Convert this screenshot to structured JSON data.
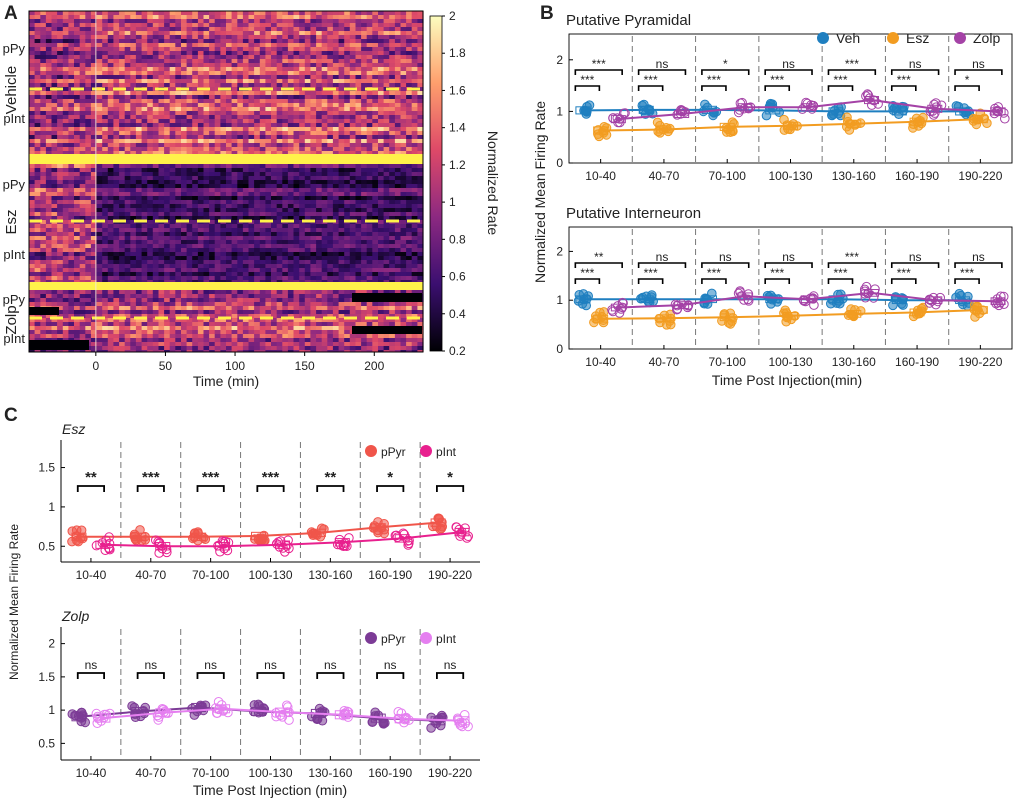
{
  "figure": {
    "panels": [
      {
        "id": "A",
        "letter": "A"
      },
      {
        "id": "B",
        "letter": "B"
      },
      {
        "id": "C",
        "letter": "C"
      }
    ]
  },
  "chart_data": [
    {
      "id": "A",
      "type": "heatmap",
      "xlabel": "Time (min)",
      "xticks": [
        0,
        50,
        100,
        150,
        200
      ],
      "xlim": [
        -48,
        235
      ],
      "colorbar": {
        "label": "Normalized Rate",
        "range": [
          0.2,
          2
        ],
        "ticks": [
          "2",
          "1.8",
          "1.6",
          "1.4",
          "1.2",
          "1",
          "0.8",
          "0.6",
          "0.4",
          "0.2"
        ],
        "stops": [
          "#000004",
          "#3b0f70",
          "#8c2981",
          "#de4968",
          "#fe9f6d",
          "#fcfdbf"
        ]
      },
      "groups": [
        {
          "name": "Vehicle",
          "rows": [
            "pPy",
            "pInt"
          ]
        },
        {
          "name": "Esz",
          "rows": [
            "pPy",
            "pInt"
          ]
        },
        {
          "name": "Zolp",
          "rows": [
            "pPy",
            "pInt"
          ]
        }
      ]
    },
    {
      "id": "B",
      "type": "scatter",
      "categories": [
        "10-40",
        "40-70",
        "70-100",
        "100-130",
        "130-160",
        "160-190",
        "190-220"
      ],
      "xlabel": "Time Post Injection(min)",
      "ylabel": "Normalized Mean Firing Rate",
      "legend": [
        {
          "name": "Veh",
          "color": "#1f7fc0"
        },
        {
          "name": "Esz",
          "color": "#f29c21"
        },
        {
          "name": "Zolp",
          "color": "#a442a6"
        }
      ],
      "subplots": [
        {
          "title": "Putative Pyramidal",
          "ylim": [
            0,
            2.5
          ],
          "yticks": [
            0,
            1,
            2
          ],
          "series": [
            {
              "name": "Veh",
              "values": [
                1.02,
                1.03,
                1.03,
                1.02,
                1.0,
                1.0,
                1.0
              ]
            },
            {
              "name": "Esz",
              "values": [
                0.63,
                0.65,
                0.7,
                0.72,
                0.76,
                0.8,
                0.85
              ]
            },
            {
              "name": "Zolp",
              "values": [
                0.85,
                0.95,
                1.08,
                1.08,
                1.22,
                1.05,
                1.0
              ]
            }
          ],
          "sig": [
            {
              "top": "***",
              "bottom": "***"
            },
            {
              "top": "ns",
              "bottom": "***"
            },
            {
              "top": "*",
              "bottom": "***"
            },
            {
              "top": "ns",
              "bottom": "***"
            },
            {
              "top": "***",
              "bottom": "***"
            },
            {
              "top": "ns",
              "bottom": "***"
            },
            {
              "top": "ns",
              "bottom": "*"
            }
          ]
        },
        {
          "title": "Putative Interneuron",
          "ylim": [
            0,
            2.5
          ],
          "yticks": [
            0,
            1,
            2
          ],
          "series": [
            {
              "name": "Veh",
              "values": [
                1.02,
                1.02,
                1.02,
                1.02,
                1.02,
                1.0,
                1.0
              ]
            },
            {
              "name": "Esz",
              "values": [
                0.62,
                0.63,
                0.65,
                0.68,
                0.72,
                0.75,
                0.8
              ]
            },
            {
              "name": "Zolp",
              "values": [
                0.85,
                0.9,
                1.08,
                1.02,
                1.15,
                1.0,
                0.98
              ]
            }
          ],
          "sig": [
            {
              "top": "**",
              "bottom": "***"
            },
            {
              "top": "ns",
              "bottom": "***"
            },
            {
              "top": "ns",
              "bottom": "***"
            },
            {
              "top": "ns",
              "bottom": "***"
            },
            {
              "top": "***",
              "bottom": "***"
            },
            {
              "top": "ns",
              "bottom": "***"
            },
            {
              "top": "ns",
              "bottom": "***"
            }
          ]
        }
      ]
    },
    {
      "id": "C",
      "type": "scatter",
      "categories": [
        "10-40",
        "40-70",
        "70-100",
        "100-130",
        "130-160",
        "160-190",
        "190-220"
      ],
      "xlabel": "Time Post Injection (min)",
      "ylabel": "Normalized Mean Firing Rate",
      "subplots": [
        {
          "title": "Esz",
          "ylim": [
            0.3,
            1.85
          ],
          "yticks": [
            0.5,
            1,
            1.5
          ],
          "legend": [
            {
              "name": "pPyr",
              "color": "#f0554a"
            },
            {
              "name": "pInt",
              "color": "#e8208e"
            }
          ],
          "series": [
            {
              "name": "pPyr",
              "values": [
                0.62,
                0.62,
                0.62,
                0.63,
                0.67,
                0.74,
                0.8
              ]
            },
            {
              "name": "pInt",
              "values": [
                0.52,
                0.5,
                0.5,
                0.52,
                0.55,
                0.6,
                0.68
              ]
            }
          ],
          "sig": [
            "**",
            "***",
            "***",
            "***",
            "**",
            "*",
            "*"
          ]
        },
        {
          "title": "Zolp",
          "ylim": [
            0.25,
            2.25
          ],
          "yticks": [
            0.5,
            1,
            1.5,
            2
          ],
          "legend": [
            {
              "name": "pPyr",
              "color": "#7c3b96"
            },
            {
              "name": "pInt",
              "color": "#e57ff0"
            }
          ],
          "series": [
            {
              "name": "pPyr",
              "values": [
                0.9,
                0.98,
                1.04,
                0.98,
                0.95,
                0.88,
                0.84
              ]
            },
            {
              "name": "pInt",
              "values": [
                0.88,
                0.96,
                1.02,
                0.97,
                0.93,
                0.87,
                0.84
              ]
            }
          ],
          "sig": [
            "ns",
            "ns",
            "ns",
            "ns",
            "ns",
            "ns",
            "ns"
          ]
        }
      ]
    }
  ]
}
